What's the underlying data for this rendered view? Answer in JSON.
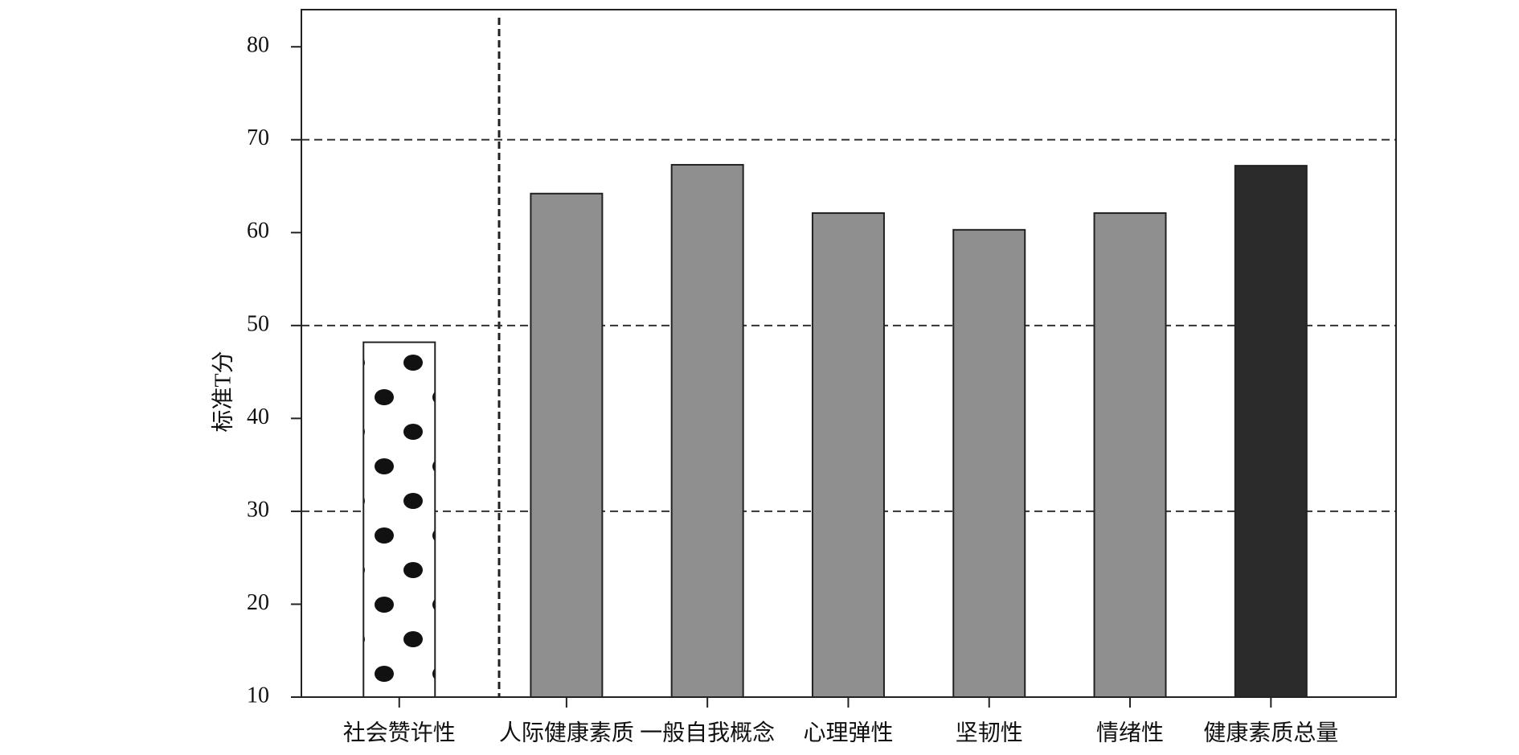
{
  "chart_data": {
    "type": "bar",
    "y_label": "标准T分",
    "categories": [
      "社会赞许性",
      "人际健康素质",
      "一般自我概念",
      "心理弹性",
      "坚韧性",
      "情绪性",
      "健康素质总量"
    ],
    "values": [
      48.2,
      64.2,
      67.3,
      62.1,
      60.3,
      62.1,
      67.2
    ],
    "colors": [
      "#ffffff",
      "#8f8f8f",
      "#8f8f8f",
      "#8f8f8f",
      "#8f8f8f",
      "#8f8f8f",
      "#2b2b2b"
    ],
    "fill_patterns": [
      "dots",
      "solid",
      "solid",
      "solid",
      "solid",
      "solid",
      "solid"
    ],
    "ylim": [
      10,
      84
    ],
    "yticks": [
      10,
      20,
      30,
      40,
      50,
      60,
      70,
      80
    ],
    "grid_lines": [
      30,
      50,
      70
    ]
  }
}
